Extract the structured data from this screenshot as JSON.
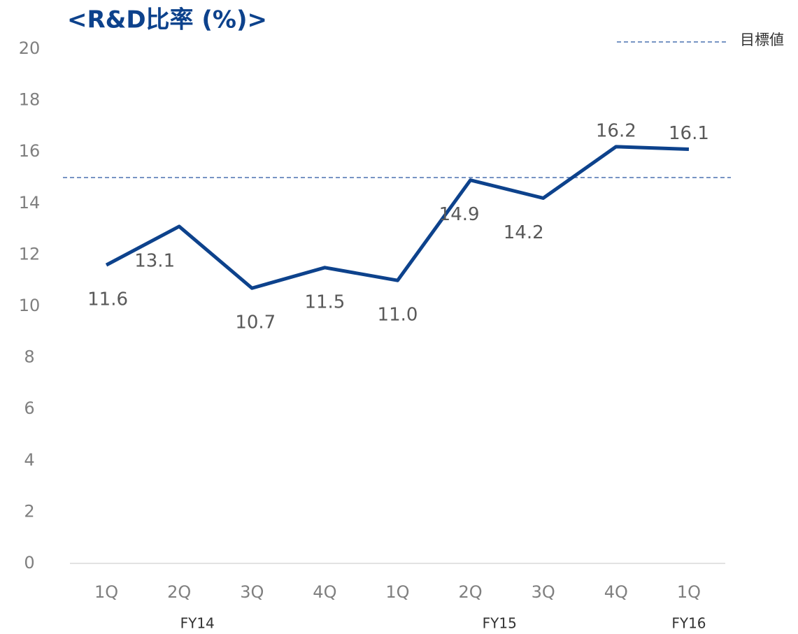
{
  "chart_data": {
    "type": "line",
    "title": "<R&D比率 (%)>",
    "categories": [
      "1Q",
      "2Q",
      "3Q",
      "4Q",
      "1Q",
      "2Q",
      "3Q",
      "4Q",
      "1Q"
    ],
    "group_labels": [
      "FY14",
      "FY15",
      "FY16"
    ],
    "series": [
      {
        "name": "R&D比率",
        "color": "#0d428c",
        "values": [
          11.6,
          13.1,
          10.7,
          11.5,
          11.0,
          14.9,
          14.2,
          16.2,
          16.1
        ],
        "value_labels": [
          "11.6",
          "13.1",
          "10.7",
          "11.5",
          "11.0",
          "14.9",
          "14.2",
          "16.2",
          "16.1"
        ]
      }
    ],
    "target": {
      "name": "目標値",
      "value": 15,
      "color": "#4a70b0"
    },
    "ylim": [
      0,
      20
    ],
    "yticks": [
      0,
      2,
      4,
      6,
      8,
      10,
      12,
      14,
      16,
      18,
      20
    ],
    "grid": false
  }
}
